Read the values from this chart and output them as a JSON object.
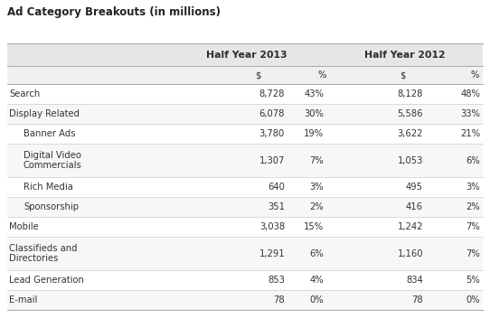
{
  "title": "Ad Category Breakouts (in millions)",
  "rows": [
    [
      "Search",
      "8,728",
      "43%",
      "8,128",
      "48%"
    ],
    [
      "Display Related",
      "6,078",
      "30%",
      "5,586",
      "33%"
    ],
    [
      "  Banner Ads",
      "3,780",
      "19%",
      "3,622",
      "21%"
    ],
    [
      "  Digital Video\nCommercials",
      "1,307",
      "7%",
      "1,053",
      "6%"
    ],
    [
      "  Rich Media",
      "640",
      "3%",
      "495",
      "3%"
    ],
    [
      "  Sponsorship",
      "351",
      "2%",
      "416",
      "2%"
    ],
    [
      "Mobile",
      "3,038",
      "15%",
      "1,242",
      "7%"
    ],
    [
      "Classifieds and\nDirectories",
      "1,291",
      "6%",
      "1,160",
      "7%"
    ],
    [
      "Lead Generation",
      "853",
      "4%",
      "834",
      "5%"
    ],
    [
      "E-mail",
      "78",
      "0%",
      "78",
      "0%"
    ]
  ],
  "header_bg": "#e6e6e6",
  "subheader_bg": "#f0f0f0",
  "row_bg_white": "#ffffff",
  "row_bg_grey": "#f7f7f7",
  "text_color": "#333333",
  "header_text_color": "#2c2c2c",
  "line_color": "#bbbbbb",
  "title_color": "#222222",
  "title_fontsize": 8.5,
  "header_fontsize": 7.8,
  "cell_fontsize": 7.2,
  "fig_width": 5.42,
  "fig_height": 3.63,
  "dpi": 100
}
